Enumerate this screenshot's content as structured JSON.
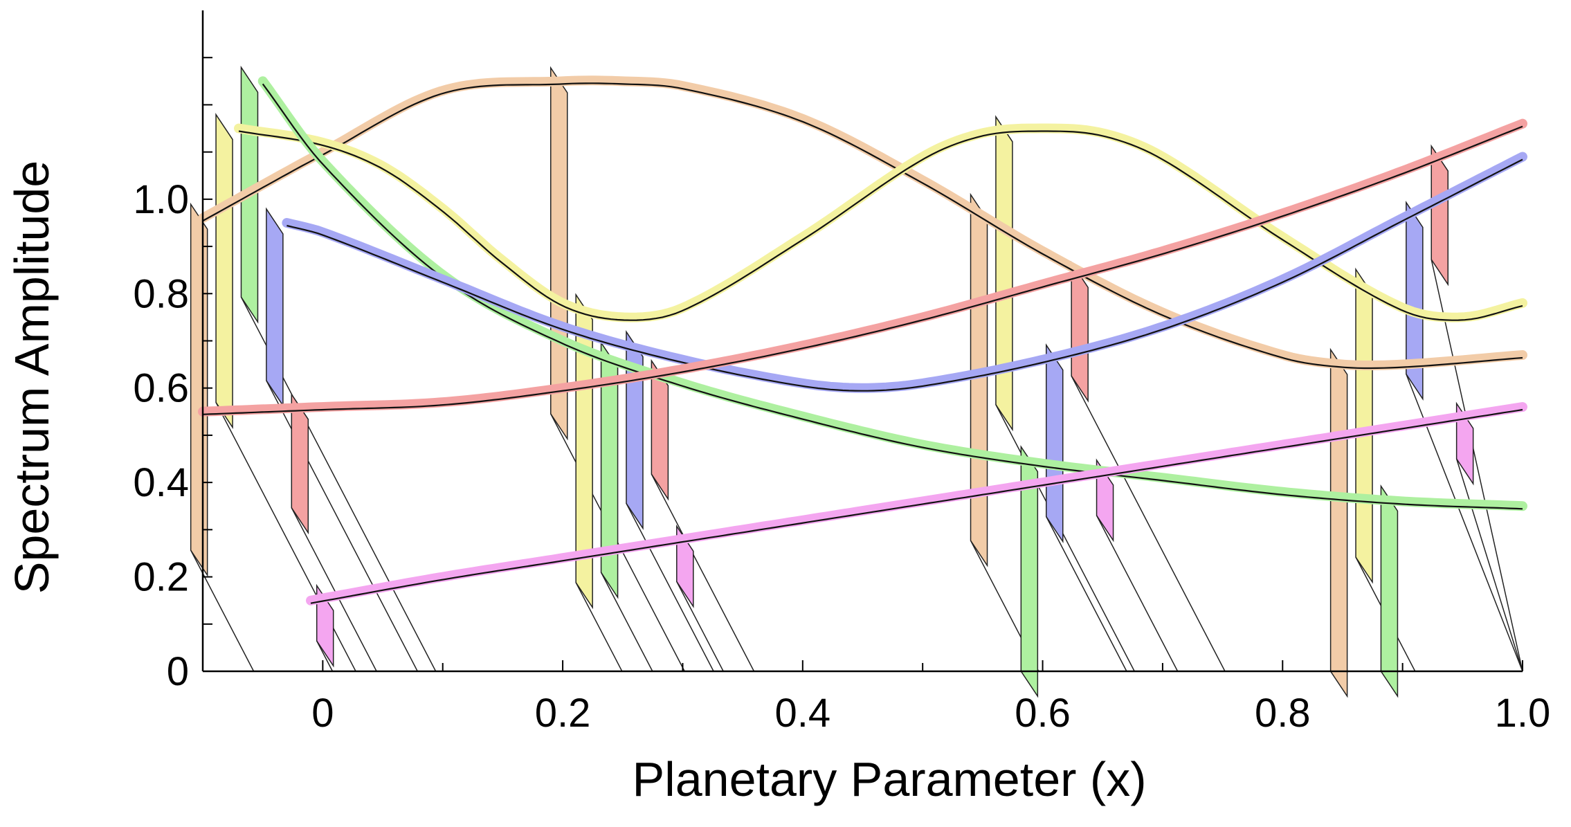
{
  "chart_data": {
    "type": "line",
    "title": "",
    "xlabel": "Planetary Parameter (x)",
    "ylabel": "Spectrum Amplitude",
    "xlim": [
      -0.1,
      1.0
    ],
    "ylim": [
      0,
      1.4
    ],
    "x_ticks": [
      {
        "value": 0,
        "label": "0"
      },
      {
        "value": 0.2,
        "label": "0.2"
      },
      {
        "value": 0.4,
        "label": "0.4"
      },
      {
        "value": 0.6,
        "label": "0.6"
      },
      {
        "value": 0.8,
        "label": "0.8"
      },
      {
        "value": 1.0,
        "label": "1.0"
      }
    ],
    "y_ticks": [
      {
        "value": 0,
        "label": "0"
      },
      {
        "value": 0.2,
        "label": "0.2"
      },
      {
        "value": 0.4,
        "label": "0.4"
      },
      {
        "value": 0.6,
        "label": "0.6"
      },
      {
        "value": 0.8,
        "label": "0.8"
      },
      {
        "value": 1.0,
        "label": "1.0"
      }
    ],
    "x_minor_step": 0.1,
    "y_minor_step": 0.1,
    "grid": false,
    "legend": "none",
    "sample_points": [
      0.0,
      0.3,
      0.65,
      0.95
    ],
    "series": [
      {
        "color": "#f2cca8",
        "x": [
          -0.1,
          0.0,
          0.1,
          0.2,
          0.25,
          0.3,
          0.4,
          0.5,
          0.6,
          0.7,
          0.8,
          0.85,
          0.9,
          1.0
        ],
        "y": [
          0.96,
          1.1,
          1.23,
          1.25,
          1.25,
          1.24,
          1.17,
          1.04,
          0.89,
          0.76,
          0.67,
          0.65,
          0.65,
          0.67
        ]
      },
      {
        "color": "#f4f2a0",
        "x": [
          -0.07,
          0.0,
          0.05,
          0.1,
          0.15,
          0.2,
          0.25,
          0.3,
          0.4,
          0.5,
          0.55,
          0.6,
          0.65,
          0.7,
          0.8,
          0.9,
          0.95,
          1.0
        ],
        "y": [
          1.15,
          1.12,
          1.07,
          0.98,
          0.87,
          0.78,
          0.75,
          0.77,
          0.92,
          1.09,
          1.14,
          1.15,
          1.14,
          1.09,
          0.92,
          0.77,
          0.75,
          0.78
        ]
      },
      {
        "color": "#aef0a0",
        "x": [
          -0.05,
          0.0,
          0.1,
          0.2,
          0.3,
          0.4,
          0.5,
          0.6,
          0.7,
          0.8,
          0.9,
          1.0
        ],
        "y": [
          1.25,
          1.08,
          0.84,
          0.7,
          0.61,
          0.54,
          0.48,
          0.44,
          0.41,
          0.38,
          0.36,
          0.35
        ]
      },
      {
        "color": "#a6a8f4",
        "x": [
          -0.03,
          0.0,
          0.1,
          0.2,
          0.3,
          0.4,
          0.45,
          0.5,
          0.6,
          0.7,
          0.8,
          0.9,
          1.0
        ],
        "y": [
          0.95,
          0.93,
          0.83,
          0.73,
          0.66,
          0.61,
          0.6,
          0.61,
          0.66,
          0.73,
          0.83,
          0.96,
          1.09
        ]
      },
      {
        "color": "#f4a2a2",
        "x": [
          -0.1,
          0.0,
          0.1,
          0.2,
          0.3,
          0.4,
          0.5,
          0.6,
          0.7,
          0.8,
          0.9,
          1.0
        ],
        "y": [
          0.55,
          0.56,
          0.57,
          0.6,
          0.64,
          0.69,
          0.75,
          0.82,
          0.89,
          0.97,
          1.06,
          1.16
        ]
      },
      {
        "color": "#f4a6f0",
        "x": [
          -0.01,
          0.1,
          0.2,
          0.3,
          0.4,
          0.5,
          0.6,
          0.7,
          0.8,
          0.9,
          1.0
        ],
        "y": [
          0.15,
          0.2,
          0.24,
          0.28,
          0.32,
          0.36,
          0.4,
          0.44,
          0.48,
          0.52,
          0.56
        ]
      }
    ]
  }
}
